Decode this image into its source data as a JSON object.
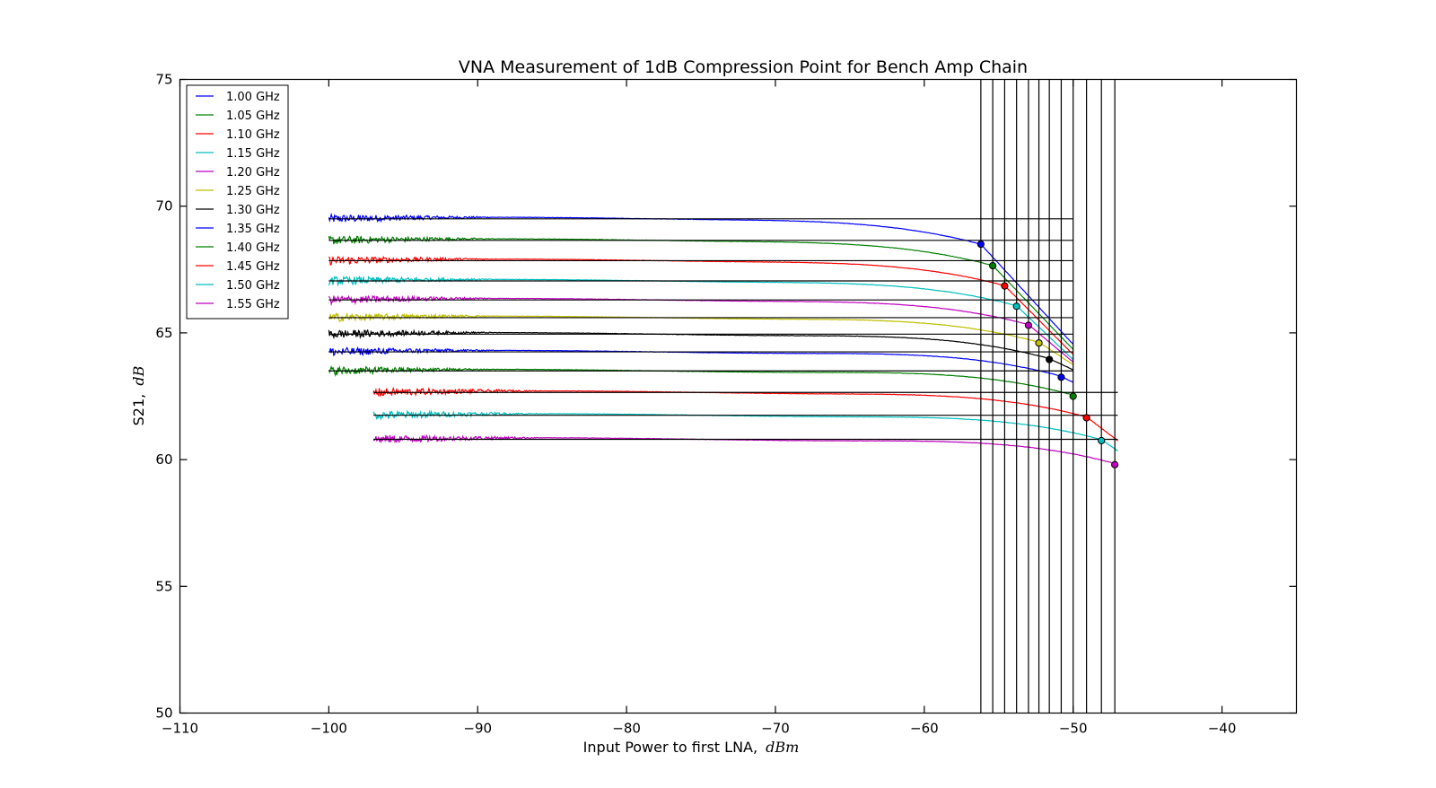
{
  "chart_data": {
    "type": "line",
    "title": "VNA Measurement of 1dB Compression Point for Bench Amp Chain",
    "xlabel": "Input Power to first LNA,",
    "xlabel_unit": "dBm",
    "ylabel": "S21,",
    "ylabel_unit": "dB",
    "xlim": [
      -110,
      -35
    ],
    "ylim": [
      50,
      75
    ],
    "xticks": [
      -110,
      -100,
      -90,
      -80,
      -70,
      -60,
      -50,
      -40
    ],
    "yticks": [
      50,
      55,
      60,
      65,
      70,
      75
    ],
    "xtick_labels": [
      "−110",
      "−100",
      "−90",
      "−80",
      "−70",
      "−60",
      "−50",
      "−40"
    ],
    "ytick_labels": [
      "50",
      "55",
      "60",
      "65",
      "70",
      "75"
    ],
    "grid": false,
    "legend_position": "top-left",
    "series": [
      {
        "name": "1.00 GHz",
        "color": "#0000ff",
        "x_start": -100,
        "x_end": -50,
        "gain": 69.5,
        "p1db": -56.2,
        "y_end": 64.5
      },
      {
        "name": "1.05 GHz",
        "color": "#008000",
        "x_start": -100,
        "x_end": -50,
        "gain": 68.65,
        "p1db": -55.4,
        "y_end": 64.3
      },
      {
        "name": "1.10 GHz",
        "color": "#ff0000",
        "x_start": -100,
        "x_end": -50,
        "gain": 67.85,
        "p1db": -54.6,
        "y_end": 64.1
      },
      {
        "name": "1.15 GHz",
        "color": "#00bfbf",
        "x_start": -100,
        "x_end": -50,
        "gain": 67.05,
        "p1db": -53.8,
        "y_end": 63.9
      },
      {
        "name": "1.20 GHz",
        "color": "#bf00bf",
        "x_start": -100,
        "x_end": -50,
        "gain": 66.3,
        "p1db": -53.0,
        "y_end": 63.8
      },
      {
        "name": "1.25 GHz",
        "color": "#bfbf00",
        "x_start": -100,
        "x_end": -50,
        "gain": 65.6,
        "p1db": -52.3,
        "y_end": 63.7
      },
      {
        "name": "1.30 GHz",
        "color": "#000000",
        "x_start": -100,
        "x_end": -50,
        "gain": 64.95,
        "p1db": -51.6,
        "y_end": 63.5
      },
      {
        "name": "1.35 GHz",
        "color": "#0000ff",
        "x_start": -100,
        "x_end": -50,
        "gain": 64.25,
        "p1db": -50.8,
        "y_end": 63.0
      },
      {
        "name": "1.40 GHz",
        "color": "#008000",
        "x_start": -100,
        "x_end": -50,
        "gain": 63.5,
        "p1db": -50.0,
        "y_end": 62.5
      },
      {
        "name": "1.45 GHz",
        "color": "#ff0000",
        "x_start": -97,
        "x_end": -47,
        "gain": 62.65,
        "p1db": -49.1,
        "y_end": 60.7
      },
      {
        "name": "1.50 GHz",
        "color": "#00bfbf",
        "x_start": -97,
        "x_end": -47,
        "gain": 61.75,
        "p1db": -48.1,
        "y_end": 60.3
      },
      {
        "name": "1.55 GHz",
        "color": "#bf00bf",
        "x_start": -97,
        "x_end": -47,
        "gain": 60.8,
        "p1db": -47.2,
        "y_end": 59.8
      }
    ]
  }
}
